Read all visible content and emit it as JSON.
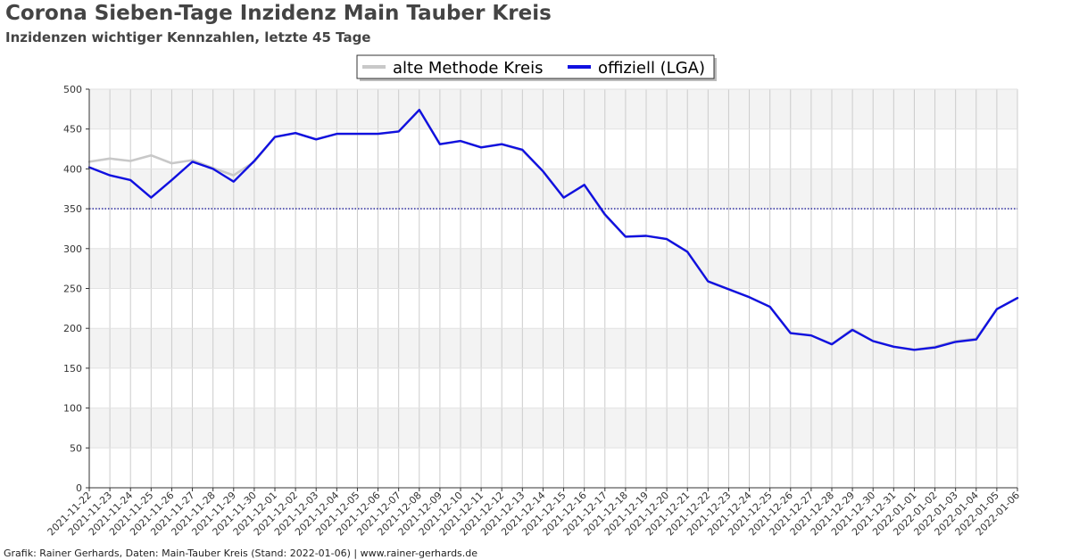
{
  "title": "Corona Sieben-Tage Inzidenz Main Tauber Kreis",
  "subtitle": "Inzidenzen wichtiger Kennzahlen, letzte 45 Tage",
  "footer": "Grafik: Rainer Gerhards, Daten: Main-Tauber Kreis (Stand: 2022-01-06) | www.rainer-gerhards.de",
  "chart_data": {
    "type": "line",
    "x": [
      "2021-11-22",
      "2021-11-23",
      "2021-11-24",
      "2021-11-25",
      "2021-11-26",
      "2021-11-27",
      "2021-11-28",
      "2021-11-29",
      "2021-11-30",
      "2021-12-01",
      "2021-12-02",
      "2021-12-03",
      "2021-12-04",
      "2021-12-05",
      "2021-12-06",
      "2021-12-07",
      "2021-12-08",
      "2021-12-09",
      "2021-12-10",
      "2021-12-11",
      "2021-12-12",
      "2021-12-13",
      "2021-12-14",
      "2021-12-15",
      "2021-12-16",
      "2021-12-17",
      "2021-12-18",
      "2021-12-19",
      "2021-12-20",
      "2021-12-21",
      "2021-12-22",
      "2021-12-23",
      "2021-12-24",
      "2021-12-25",
      "2021-12-26",
      "2021-12-27",
      "2021-12-28",
      "2021-12-29",
      "2021-12-30",
      "2021-12-31",
      "2022-01-01",
      "2022-01-02",
      "2022-01-03",
      "2022-01-04",
      "2022-01-05",
      "2022-01-06"
    ],
    "ylim": [
      0,
      500
    ],
    "yticks": [
      0,
      50,
      100,
      150,
      200,
      250,
      300,
      350,
      400,
      450,
      500
    ],
    "reference_line": 350,
    "grid": true,
    "legend_position": "top-center",
    "series": [
      {
        "name": "alte Methode Kreis",
        "color": "#c8c8c8",
        "values": [
          409,
          413,
          410,
          417,
          407,
          411,
          401,
          392,
          409,
          440,
          445,
          437,
          444,
          444,
          444,
          447,
          474,
          431,
          435,
          427,
          431,
          423,
          397,
          364,
          380,
          342,
          315,
          316,
          312,
          296,
          259,
          249,
          239,
          227,
          194,
          191,
          180,
          199,
          184,
          177,
          173,
          177,
          184,
          187,
          224,
          238
        ]
      },
      {
        "name": "offiziell (LGA)",
        "color": "#1010e0",
        "values": [
          402,
          392,
          386,
          364,
          386,
          409,
          400,
          384,
          410,
          440,
          445,
          437,
          444,
          444,
          444,
          447,
          474,
          431,
          435,
          427,
          431,
          424,
          397,
          364,
          380,
          343,
          315,
          316,
          312,
          296,
          259,
          249,
          239,
          227,
          194,
          191,
          180,
          198,
          184,
          177,
          173,
          176,
          183,
          186,
          224,
          238
        ]
      }
    ]
  }
}
